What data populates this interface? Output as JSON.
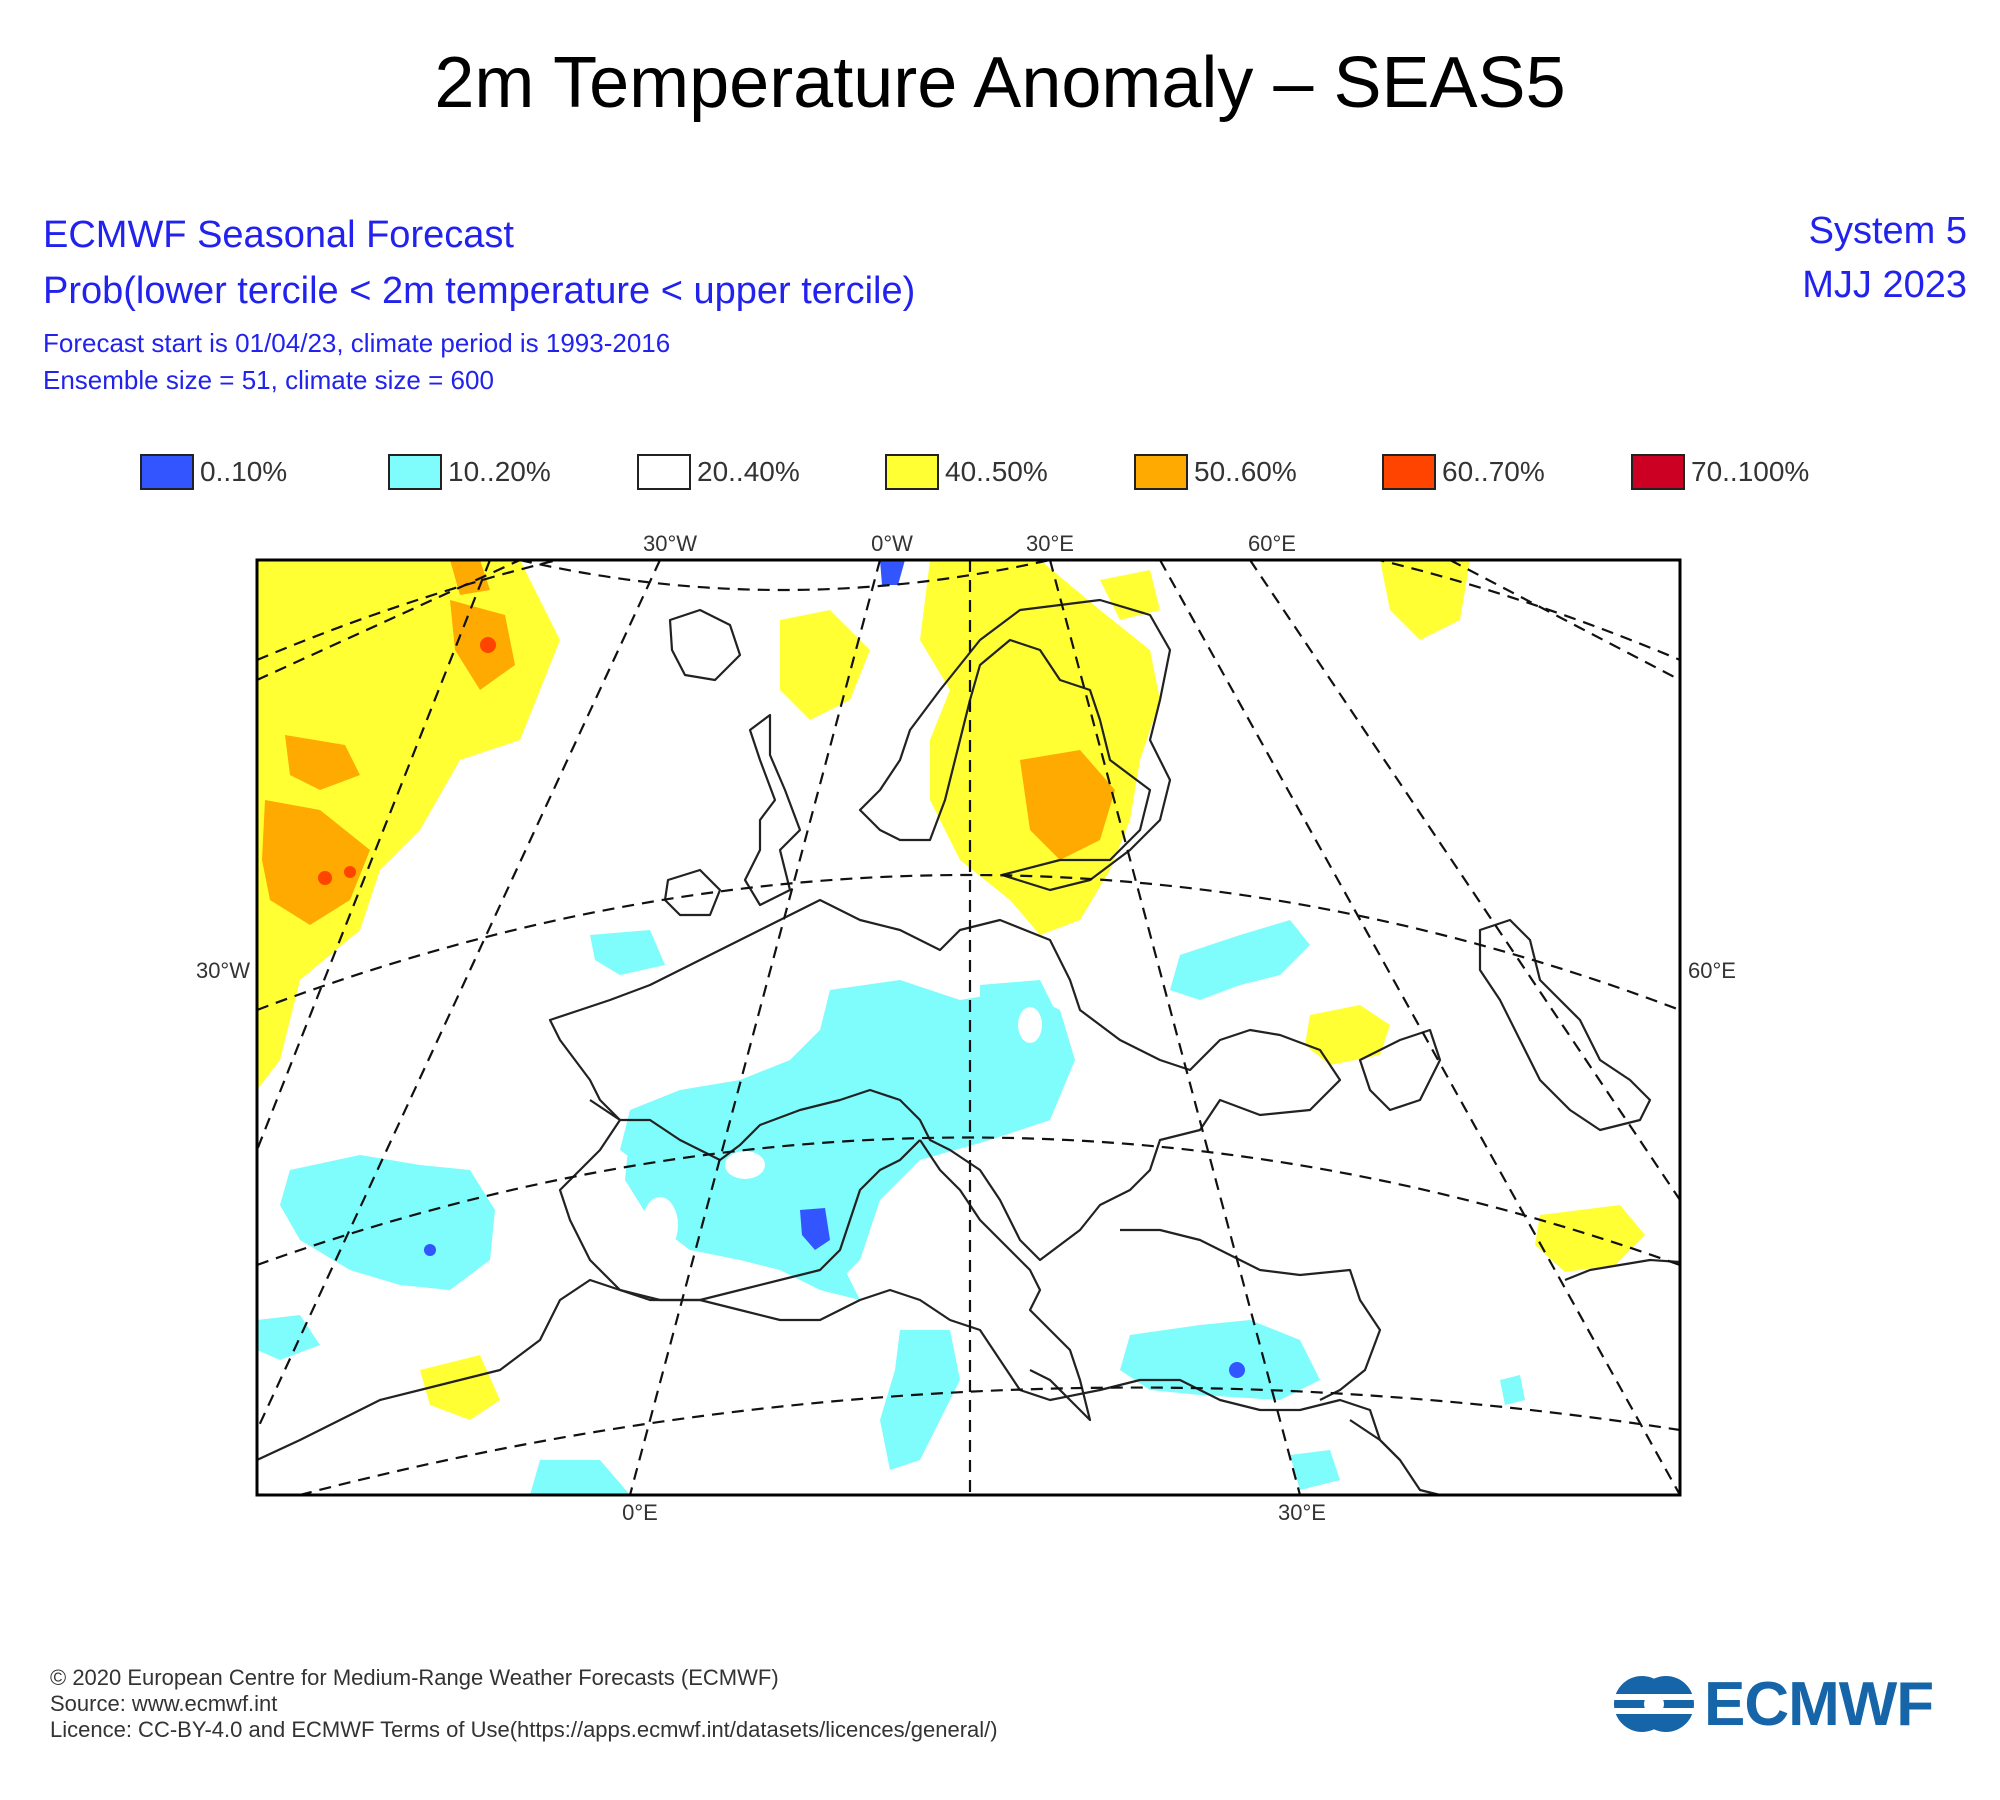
{
  "title": "2m Temperature Anomaly – SEAS5",
  "header": {
    "line1": "ECMWF Seasonal Forecast",
    "line2": "Prob(lower tercile < 2m temperature < upper tercile)",
    "line3": "Forecast start is 01/04/23, climate period is 1993-2016",
    "line4": "Ensemble size = 51, climate size = 600",
    "system": "System 5",
    "period": "MJJ 2023"
  },
  "legend": [
    {
      "label": "0..10%",
      "color": "#3355ff"
    },
    {
      "label": "10..20%",
      "color": "#7ffcfc"
    },
    {
      "label": "20..40%",
      "color": "#ffffff"
    },
    {
      "label": "40..50%",
      "color": "#ffff33"
    },
    {
      "label": "50..60%",
      "color": "#ffaa00"
    },
    {
      "label": "60..70%",
      "color": "#ff4400"
    },
    {
      "label": "70..100%",
      "color": "#cc0022"
    }
  ],
  "map": {
    "top_labels": [
      "30°W",
      "0°W",
      "30°E",
      "60°E"
    ],
    "left_label": "30°W",
    "right_label": "60°E",
    "bottom_labels": [
      "0°E",
      "30°E"
    ]
  },
  "footer": {
    "line1": "© 2020 European Centre for Medium-Range Weather Forecasts (ECMWF)",
    "line2": "Source: www.ecmwf.int",
    "line3": "Licence: CC-BY-4.0 and ECMWF Terms of Use(https://apps.ecmwf.int/datasets/licences/general/)"
  },
  "logo": {
    "text": "ECMWF",
    "color": "#1565a8",
    "icon": "ecmwf-logo-icon"
  }
}
